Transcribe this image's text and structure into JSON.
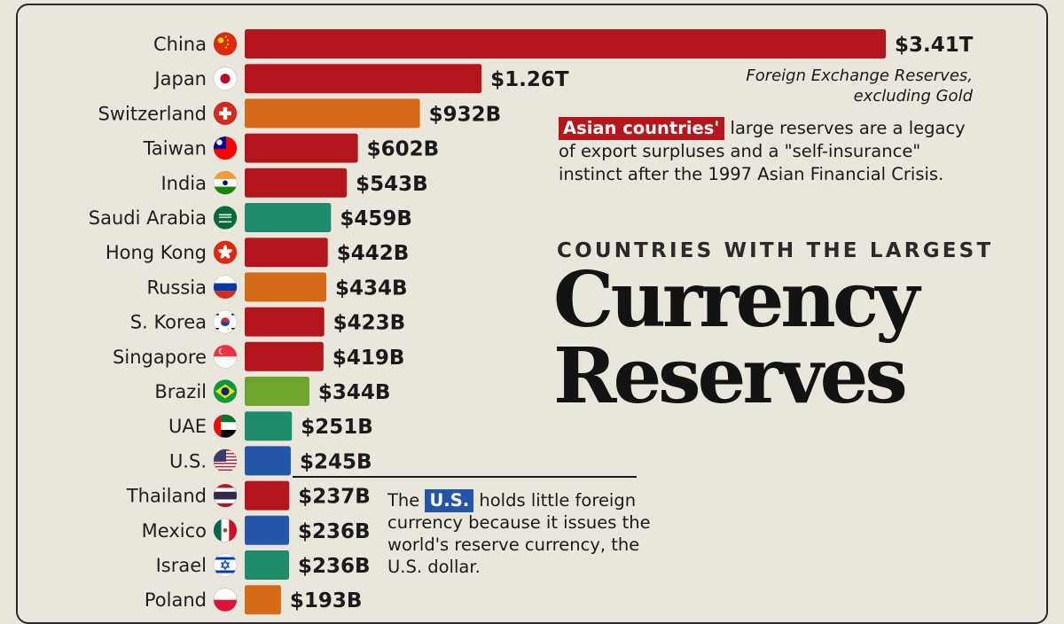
{
  "colors": {
    "red": "#b3161b",
    "orange": "#d46a16",
    "teal": "#1e8b6c",
    "green": "#6da52d",
    "blue": "#2457a7",
    "background": "#ebe6dc"
  },
  "chart_data": {
    "type": "bar",
    "orientation": "horizontal",
    "title": "Currency Reserves",
    "subtitle": "COUNTRIES WITH THE LARGEST",
    "xlabel": "",
    "ylabel": "",
    "unit": "USD",
    "grid": false,
    "categories": [
      "China",
      "Japan",
      "Switzerland",
      "Taiwan",
      "India",
      "Saudi Arabia",
      "Hong Kong",
      "Russia",
      "S. Korea",
      "Singapore",
      "Brazil",
      "UAE",
      "U.S.",
      "Thailand",
      "Mexico",
      "Israel",
      "Poland"
    ],
    "values": [
      3410,
      1260,
      932,
      602,
      543,
      459,
      442,
      434,
      423,
      419,
      344,
      251,
      245,
      237,
      236,
      236,
      193
    ],
    "value_units": "billions",
    "value_labels": [
      "$3.41T",
      "$1.26T",
      "$932B",
      "$602B",
      "$543B",
      "$459B",
      "$442B",
      "$434B",
      "$423B",
      "$419B",
      "$344B",
      "$251B",
      "$245B",
      "$237B",
      "$236B",
      "$236B",
      "$193B"
    ],
    "bar_colors": [
      "red",
      "red",
      "orange",
      "red",
      "red",
      "teal",
      "red",
      "orange",
      "red",
      "red",
      "green",
      "teal",
      "blue",
      "red",
      "blue",
      "teal",
      "orange"
    ],
    "flag_icons": [
      "china-flag-icon",
      "japan-flag-icon",
      "switzerland-flag-icon",
      "taiwan-flag-icon",
      "india-flag-icon",
      "saudi-arabia-flag-icon",
      "hong-kong-flag-icon",
      "russia-flag-icon",
      "south-korea-flag-icon",
      "singapore-flag-icon",
      "brazil-flag-icon",
      "uae-flag-icon",
      "us-flag-icon",
      "thailand-flag-icon",
      "mexico-flag-icon",
      "israel-flag-icon",
      "poland-flag-icon"
    ]
  },
  "legend_note": {
    "line1": "Foreign Exchange Reserves,",
    "line2": "excluding Gold"
  },
  "asia_note": {
    "highlight": "Asian countries'",
    "text": " large reserves are a legacy of export surpluses and a \"self-insurance\" instinct after the 1997 Asian Financial Crisis."
  },
  "headline": {
    "subtitle": "COUNTRIES WITH THE LARGEST",
    "title_line1": "Currency",
    "title_line2": "Reserves"
  },
  "us_note": {
    "prefix": "The ",
    "highlight": "U.S.",
    "text": " holds little foreign currency because it issues the world's reserve currency, the U.S. dollar."
  }
}
